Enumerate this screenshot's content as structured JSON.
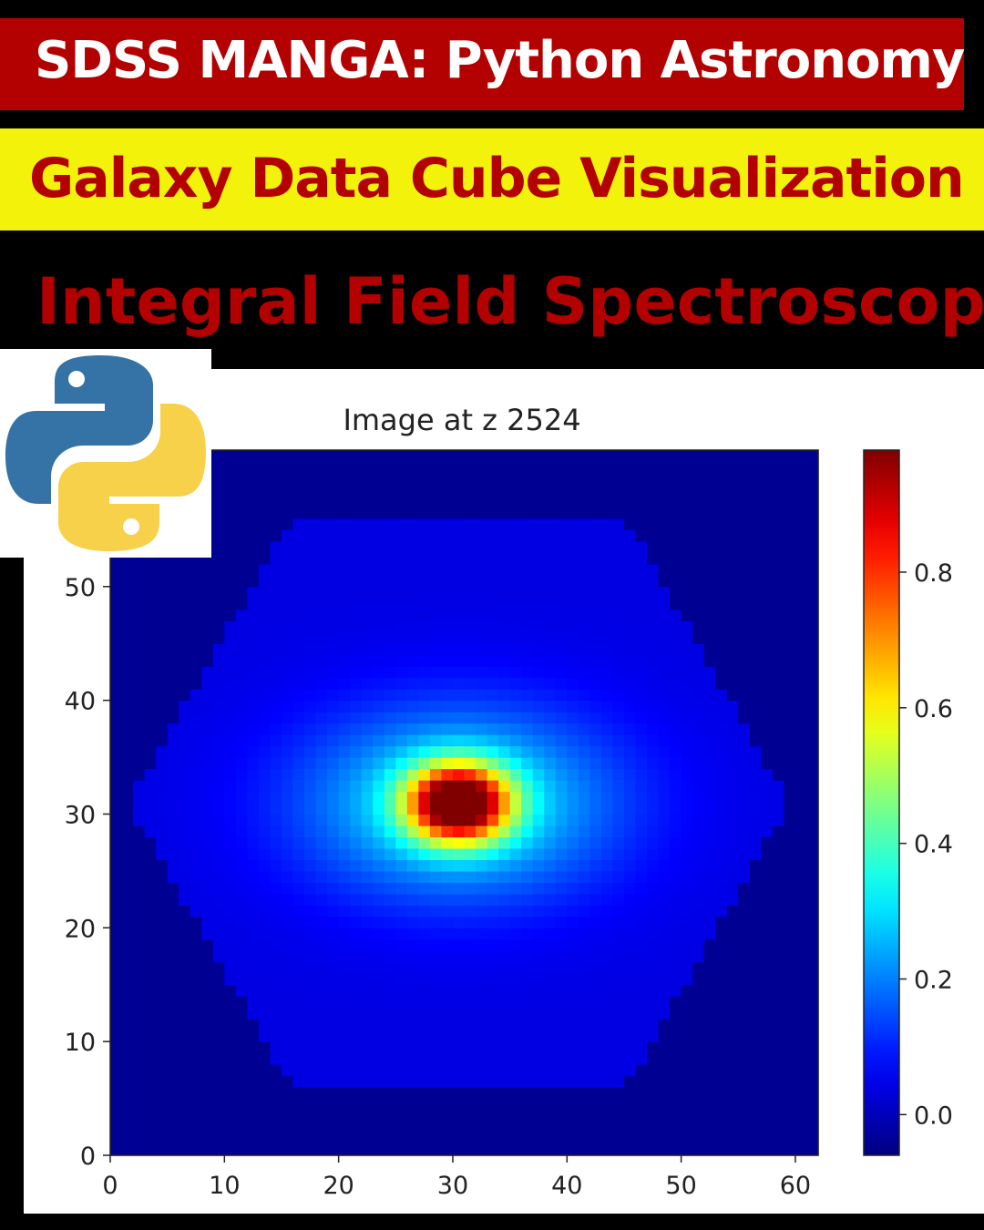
{
  "header": {
    "line1": "SDSS MANGA: Python Astronomy",
    "line2": "Galaxy Data Cube Visualization",
    "line3": "Integral Field Spectroscopy"
  },
  "logo": {
    "icon": "python-logo-icon",
    "colors": {
      "blue": "#3572a5",
      "yellow": "#f7d14a"
    }
  },
  "colors": {
    "red_banner": "#b30000",
    "yellow_banner": "#f2f20a",
    "background": "#000000"
  },
  "chart_data": {
    "type": "heatmap",
    "title": "Image at z 2524",
    "colormap": "jet",
    "xlim": [
      0,
      62
    ],
    "ylim": [
      0,
      62
    ],
    "xticks": [
      0,
      10,
      20,
      30,
      40,
      50,
      60
    ],
    "yticks": [
      0,
      10,
      20,
      30,
      40,
      50
    ],
    "colorbar": {
      "range": [
        -0.06,
        0.98
      ],
      "ticks": [
        0.0,
        0.2,
        0.4,
        0.6,
        0.8
      ]
    },
    "peak": {
      "x": 31,
      "y": 31,
      "value": 0.98
    },
    "background_value": -0.04,
    "disk_value": 0.04,
    "grid": false
  }
}
